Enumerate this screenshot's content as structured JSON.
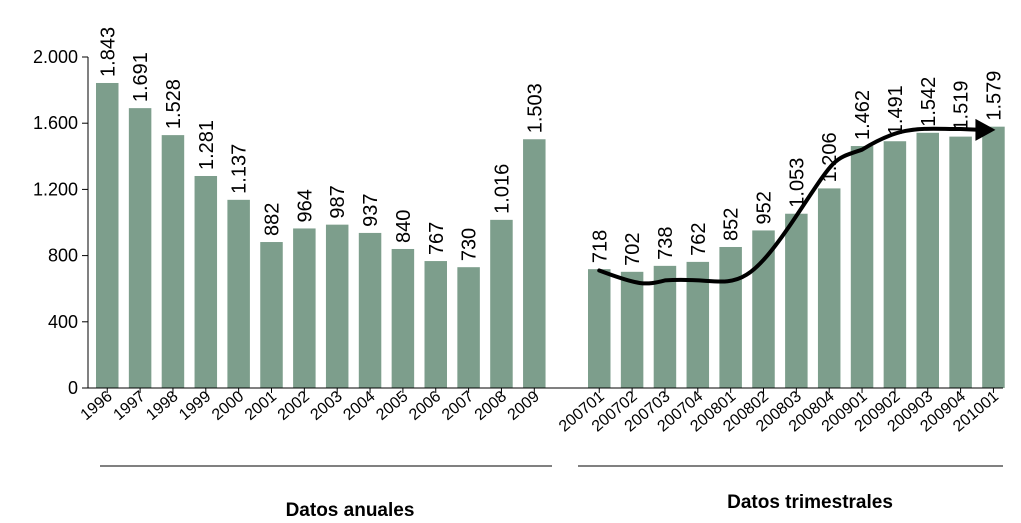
{
  "chart_data": {
    "type": "bar",
    "title": "",
    "xlabel": "",
    "ylabel": "",
    "ylim": [
      0,
      2000
    ],
    "y_ticks": [
      0,
      400,
      800,
      1200,
      1600,
      2000
    ],
    "y_tick_labels": [
      "0",
      "400",
      "800",
      "1.200",
      "1.600",
      "2.000"
    ],
    "bar_color": "#7d9e8c",
    "grid": false,
    "groups": [
      {
        "label": "Datos anuales",
        "categories": [
          "1996",
          "1997",
          "1998",
          "1999",
          "2000",
          "2001",
          "2002",
          "2003",
          "2004",
          "2005",
          "2006",
          "2007",
          "2008",
          "2009"
        ],
        "values": [
          1843,
          1691,
          1528,
          1281,
          1137,
          882,
          964,
          987,
          937,
          840,
          767,
          730,
          1016,
          1503
        ],
        "value_labels": [
          "1.843",
          "1.691",
          "1.528",
          "1.281",
          "1.137",
          "882",
          "964",
          "987",
          "937",
          "840",
          "767",
          "730",
          "1.016",
          "1.503"
        ]
      },
      {
        "label": "Datos trimestrales",
        "categories": [
          "200701",
          "200702",
          "200703",
          "200704",
          "200801",
          "200802",
          "200803",
          "200804",
          "200901",
          "200902",
          "200903",
          "200904",
          "201001"
        ],
        "values": [
          718,
          702,
          738,
          762,
          852,
          952,
          1053,
          1206,
          1462,
          1491,
          1542,
          1519,
          1579
        ],
        "value_labels": [
          "718",
          "702",
          "738",
          "762",
          "852",
          "952",
          "1.053",
          "1.206",
          "1.462",
          "1.491",
          "1.542",
          "1.519",
          "1.579"
        ]
      }
    ],
    "annotations": [
      {
        "type": "trend-arrow",
        "description": "curved arrow",
        "points": [
          [
            "200701",
            710
          ],
          [
            "200703",
            650
          ],
          [
            "200803",
            1040
          ],
          [
            "200901",
            1440
          ],
          [
            "200904",
            1565
          ],
          [
            "201001",
            1560
          ]
        ]
      }
    ]
  }
}
